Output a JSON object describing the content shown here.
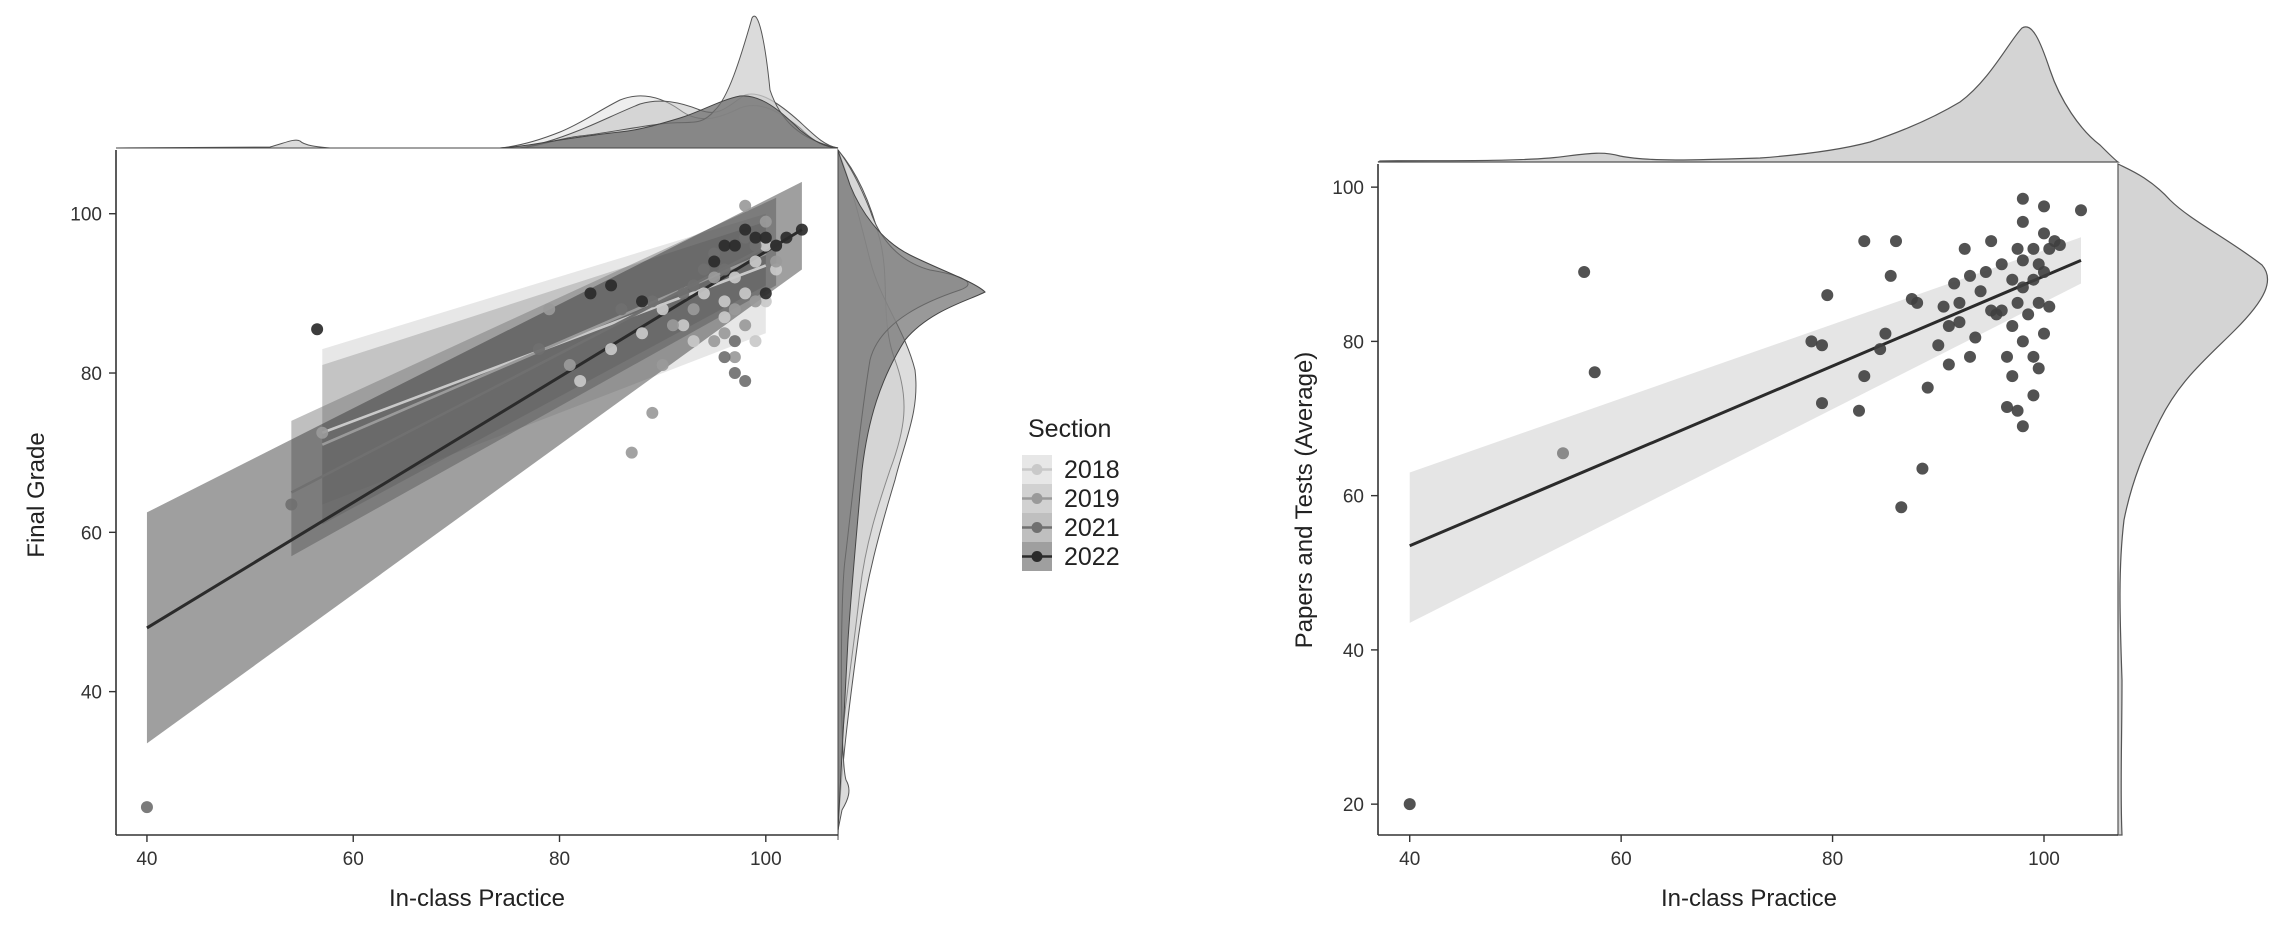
{
  "colors": {
    "2018": "#c9c9c9",
    "2019": "#9a9a9a",
    "2021": "#707070",
    "2022": "#2b2b2b",
    "ribbon": "#cfcfcf",
    "density_fill": "#d4d4d4",
    "axis": "#333333"
  },
  "chart_data": [
    {
      "type": "scatter",
      "name": "final-grade-vs-practice",
      "xlabel": "In-class Practice",
      "ylabel": "Final Grade",
      "xlim": [
        37,
        107
      ],
      "ylim": [
        22,
        108
      ],
      "xticks": [
        40,
        60,
        80,
        100
      ],
      "yticks": [
        40,
        60,
        80,
        100
      ],
      "legend": {
        "title": "Section",
        "position": "right",
        "entries": [
          "2018",
          "2019",
          "2021",
          "2022"
        ]
      },
      "series": [
        {
          "name": "2018",
          "points": [
            [
              82,
              79
            ],
            [
              85,
              83
            ],
            [
              88,
              85
            ],
            [
              90,
              88
            ],
            [
              92,
              86
            ],
            [
              94,
              90
            ],
            [
              96,
              89
            ],
            [
              97,
              92
            ],
            [
              98,
              90
            ],
            [
              99,
              84
            ],
            [
              99,
              94
            ],
            [
              100,
              96
            ],
            [
              100,
              89
            ],
            [
              101,
              93
            ],
            [
              96,
              87
            ],
            [
              93,
              84
            ]
          ],
          "fit": {
            "x": [
              57,
              100
            ],
            "y": [
              72.5,
              93.5
            ]
          },
          "band": {
            "x": [
              57,
              100
            ],
            "lower": [
              63.5,
              85
            ],
            "upper": [
              83,
              100
            ]
          }
        },
        {
          "name": "2019",
          "points": [
            [
              57,
              72.5
            ],
            [
              79,
              88
            ],
            [
              81,
              81
            ],
            [
              87,
              70
            ],
            [
              89,
              75
            ],
            [
              90,
              81
            ],
            [
              93,
              88
            ],
            [
              95,
              92
            ],
            [
              96,
              85
            ],
            [
              97,
              88
            ],
            [
              98,
              101
            ],
            [
              98,
              86
            ],
            [
              99,
              89
            ],
            [
              100,
              99
            ],
            [
              101,
              94
            ],
            [
              97,
              82
            ],
            [
              95,
              84
            ],
            [
              91,
              86
            ]
          ],
          "fit": {
            "x": [
              57,
              100
            ],
            "y": [
              71,
              95
            ]
          },
          "band": {
            "x": [
              57,
              100
            ],
            "lower": [
              61,
              91
            ],
            "upper": [
              81,
              99
            ]
          }
        },
        {
          "name": "2021",
          "points": [
            [
              54,
              63.5
            ],
            [
              78,
              83
            ],
            [
              86,
              88
            ],
            [
              89,
              89
            ],
            [
              92,
              90
            ],
            [
              94,
              93
            ],
            [
              95,
              95
            ],
            [
              96,
              93
            ],
            [
              97,
              84
            ],
            [
              97,
              80
            ],
            [
              98,
              79
            ],
            [
              98,
              97
            ],
            [
              99,
              96
            ],
            [
              100,
              97
            ],
            [
              101,
              96
            ],
            [
              96,
              82
            ],
            [
              93,
              91
            ],
            [
              40,
              25.5
            ]
          ],
          "fit": {
            "x": [
              54,
              101
            ],
            "y": [
              65,
              96.5
            ]
          },
          "band": {
            "x": [
              54,
              101
            ],
            "lower": [
              57,
              91
            ],
            "upper": [
              74,
              102
            ]
          }
        },
        {
          "name": "2022",
          "points": [
            [
              56.5,
              85.5
            ],
            [
              83,
              90
            ],
            [
              85,
              91
            ],
            [
              88,
              89
            ],
            [
              95,
              94
            ],
            [
              96,
              96
            ],
            [
              97,
              96
            ],
            [
              98,
              98
            ],
            [
              99,
              97
            ],
            [
              100,
              97
            ],
            [
              100,
              90
            ],
            [
              101,
              96
            ],
            [
              102,
              97
            ],
            [
              103.5,
              98
            ]
          ],
          "fit": {
            "x": [
              40,
              103.5
            ],
            "y": [
              48,
              98
            ]
          },
          "band": {
            "x": [
              40,
              103.5
            ],
            "lower": [
              33.5,
              93
            ],
            "upper": [
              62.5,
              104
            ]
          }
        }
      ]
    },
    {
      "type": "scatter",
      "name": "papers-tests-vs-practice",
      "xlabel": "In-class Practice",
      "ylabel": "Papers and Tests (Average)",
      "xlim": [
        37,
        107
      ],
      "ylim": [
        16,
        103
      ],
      "xticks": [
        40,
        60,
        80,
        100
      ],
      "yticks": [
        20,
        40,
        60,
        80,
        100
      ],
      "points": [
        [
          40,
          20
        ],
        [
          54.5,
          65.5
        ],
        [
          56.5,
          89
        ],
        [
          57.5,
          76
        ],
        [
          78,
          80
        ],
        [
          79,
          79.5
        ],
        [
          79,
          72
        ],
        [
          79.5,
          86
        ],
        [
          82.5,
          71
        ],
        [
          83,
          93
        ],
        [
          83,
          75.5
        ],
        [
          84.5,
          79
        ],
        [
          85,
          81
        ],
        [
          85.5,
          88.5
        ],
        [
          86,
          93
        ],
        [
          86.5,
          58.5
        ],
        [
          87.5,
          85.5
        ],
        [
          88,
          85
        ],
        [
          88.5,
          63.5
        ],
        [
          89,
          74
        ],
        [
          90,
          79.5
        ],
        [
          90.5,
          84.5
        ],
        [
          91,
          82
        ],
        [
          91,
          77
        ],
        [
          91.5,
          87.5
        ],
        [
          92,
          85
        ],
        [
          92,
          82.5
        ],
        [
          92.5,
          92
        ],
        [
          93,
          88.5
        ],
        [
          93,
          78
        ],
        [
          93.5,
          80.5
        ],
        [
          94,
          86.5
        ],
        [
          94.5,
          89
        ],
        [
          95,
          84
        ],
        [
          95,
          93
        ],
        [
          95.5,
          83.5
        ],
        [
          96,
          90
        ],
        [
          96,
          84
        ],
        [
          96.5,
          78
        ],
        [
          96.5,
          71.5
        ],
        [
          97,
          88
        ],
        [
          97,
          82
        ],
        [
          97,
          75.5
        ],
        [
          97.5,
          92
        ],
        [
          97.5,
          85
        ],
        [
          97.5,
          71
        ],
        [
          98,
          98.5
        ],
        [
          98,
          95.5
        ],
        [
          98,
          90.5
        ],
        [
          98,
          87
        ],
        [
          98,
          80
        ],
        [
          98,
          69
        ],
        [
          98.5,
          83.5
        ],
        [
          99,
          92
        ],
        [
          99,
          88
        ],
        [
          99,
          78
        ],
        [
          99,
          73
        ],
        [
          99.5,
          90
        ],
        [
          99.5,
          85
        ],
        [
          99.5,
          76.5
        ],
        [
          100,
          97.5
        ],
        [
          100,
          94
        ],
        [
          100,
          89
        ],
        [
          100,
          81
        ],
        [
          100.5,
          92
        ],
        [
          100.5,
          84.5
        ],
        [
          101,
          93
        ],
        [
          101.5,
          92.5
        ],
        [
          103.5,
          97
        ]
      ],
      "fit": {
        "x": [
          40,
          103.5
        ],
        "y": [
          53.5,
          90.5
        ]
      },
      "band": {
        "x": [
          40,
          103.5
        ],
        "lower": [
          43.5,
          87.5
        ],
        "upper": [
          63,
          93.5
        ]
      }
    }
  ]
}
